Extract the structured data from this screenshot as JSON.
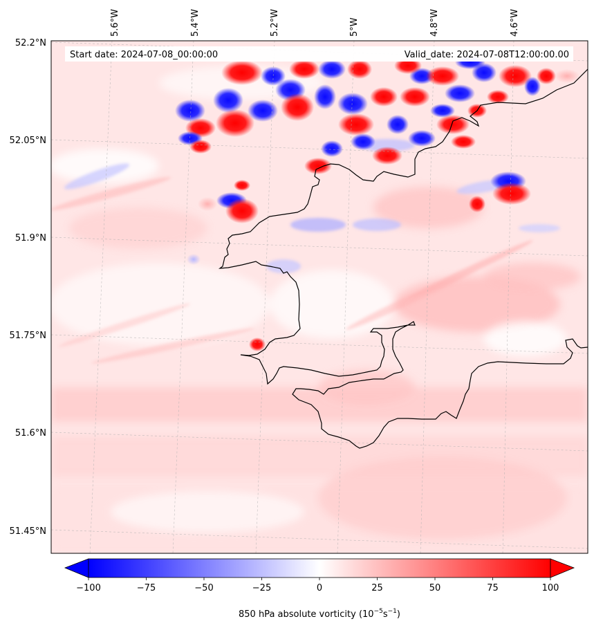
{
  "map": {
    "start_date": "Start date: 2024-07-08_00:00:00",
    "valid_date": "Valid_date: 2024-07-08T12:00:00.00",
    "lon_ticks": [
      "5.6°W",
      "5.4°W",
      "5.2°W",
      "5°W",
      "4.8°W",
      "4.6°W"
    ],
    "lat_ticks": [
      "52.2°N",
      "52.05°N",
      "51.9°N",
      "51.75°N",
      "51.6°N",
      "51.45°N"
    ],
    "field": "850 hPa absolute vorticity",
    "colormap": {
      "negative": "#0000ff",
      "zero": "#ffffff",
      "positive": "#ff0000"
    }
  },
  "colorbar": {
    "label": "850 hPa absolute vorticity (10",
    "label_exp1": "−5",
    "label_mid": "s",
    "label_exp2": "−1",
    "label_end": ")",
    "min": -100,
    "max": 100,
    "ticks": [
      "−100",
      "−75",
      "−50",
      "−25",
      "0",
      "25",
      "50",
      "75",
      "100"
    ],
    "tick_values": [
      -100,
      -75,
      -50,
      -25,
      0,
      25,
      50,
      75,
      100
    ],
    "extend": "both"
  }
}
